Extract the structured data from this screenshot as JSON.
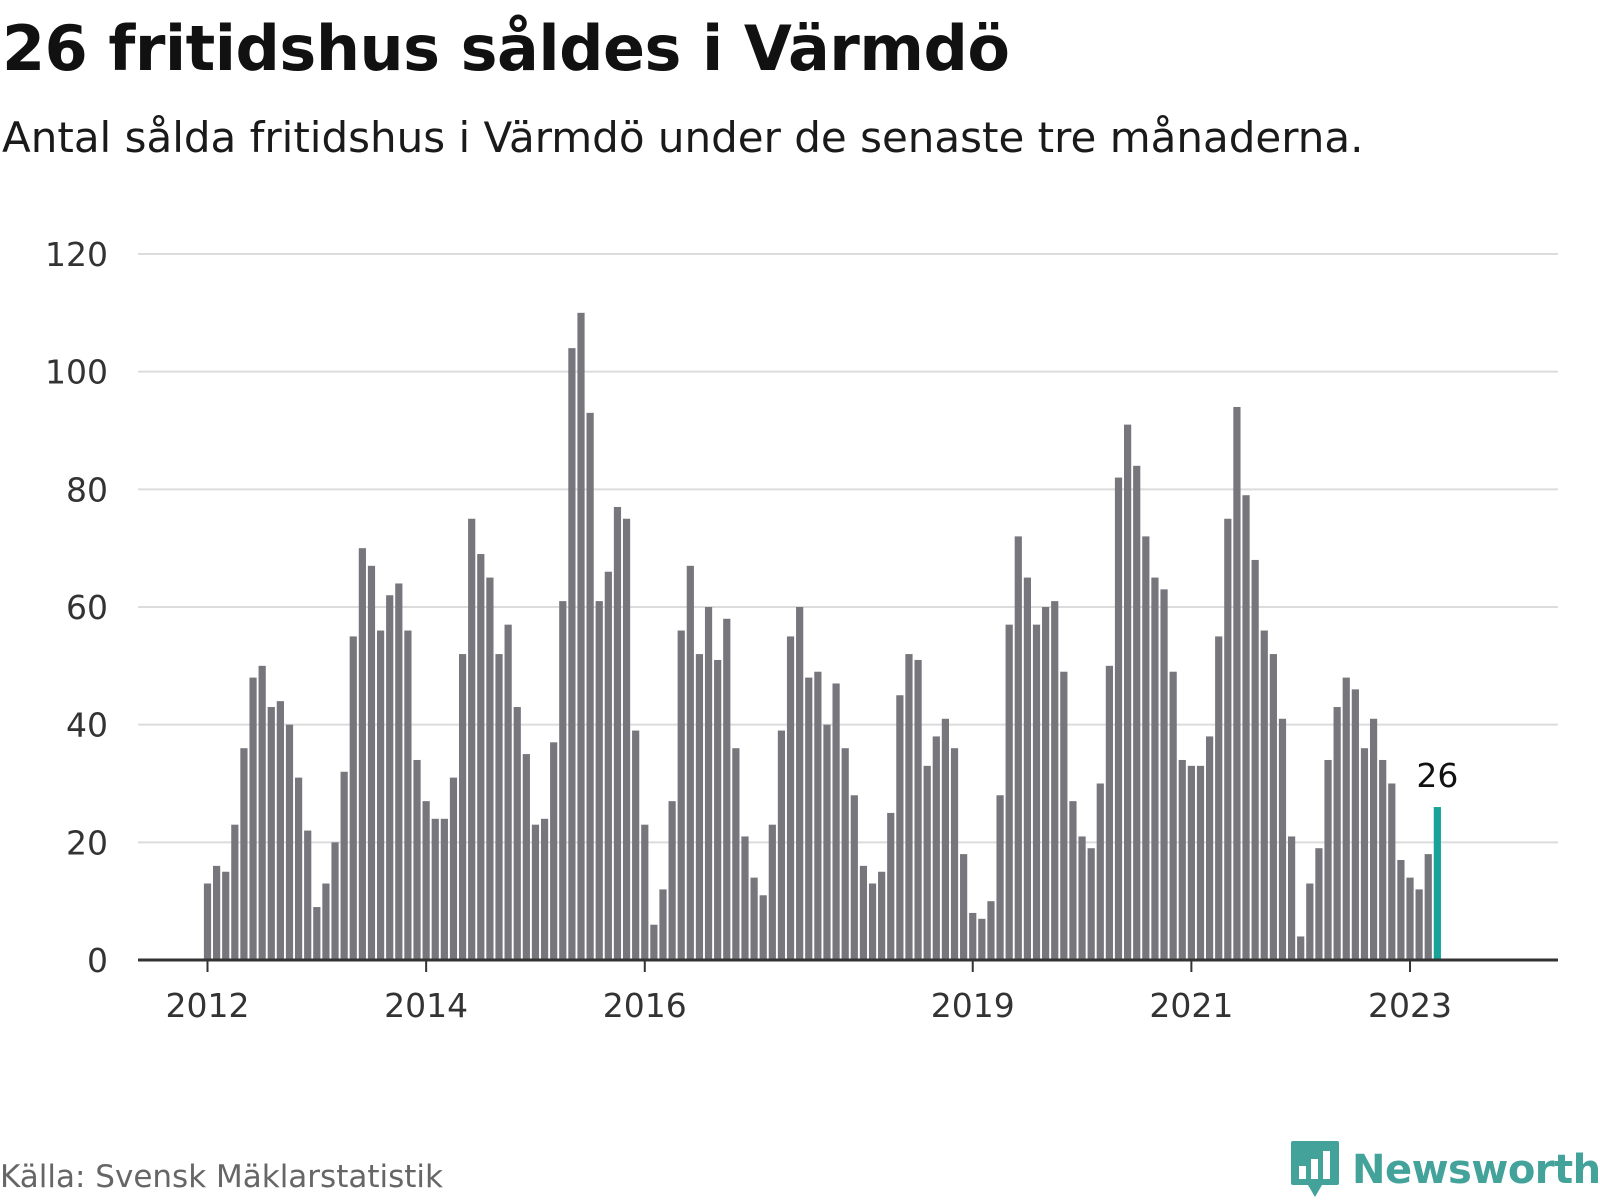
{
  "title": "26 fritidshus såldes i Värmdö",
  "subtitle": "Antal sålda fritidshus i Värmdö under de senaste tre månaderna.",
  "source": "Källa: Svensk Mäklarstatistik",
  "brand": {
    "name": "Newsworthy",
    "color": "#43a39b",
    "icon": "newsworthy-logo-icon"
  },
  "colors": {
    "bar": "#76767c",
    "highlight": "#17a399",
    "grid": "#dcdcdc",
    "axis": "#333333"
  },
  "chart_data": {
    "type": "bar",
    "title": "26 fritidshus såldes i Värmdö",
    "xlabel": "",
    "ylabel": "",
    "ylim": [
      0,
      120
    ],
    "yticks": [
      0,
      20,
      40,
      60,
      80,
      100,
      120
    ],
    "grid": true,
    "legend": "none",
    "start_month": "2012-01",
    "end_month": "2023-03",
    "xtick_labels": [
      {
        "label": "2012",
        "index": 0
      },
      {
        "label": "2014",
        "index": 24
      },
      {
        "label": "2016",
        "index": 48
      },
      {
        "label": "2019",
        "index": 84
      },
      {
        "label": "2021",
        "index": 108
      },
      {
        "label": "2023",
        "index": 132
      }
    ],
    "values": [
      13,
      16,
      15,
      23,
      36,
      48,
      50,
      43,
      44,
      40,
      31,
      22,
      9,
      13,
      20,
      32,
      55,
      70,
      67,
      56,
      62,
      64,
      56,
      34,
      27,
      24,
      24,
      31,
      52,
      75,
      69,
      65,
      52,
      57,
      43,
      35,
      23,
      24,
      37,
      61,
      104,
      110,
      93,
      61,
      66,
      77,
      75,
      39,
      23,
      6,
      12,
      27,
      56,
      67,
      52,
      60,
      51,
      58,
      36,
      21,
      14,
      11,
      23,
      39,
      55,
      60,
      48,
      49,
      40,
      47,
      36,
      28,
      16,
      13,
      15,
      25,
      45,
      52,
      51,
      33,
      38,
      41,
      36,
      18,
      8,
      7,
      10,
      28,
      57,
      72,
      65,
      57,
      60,
      61,
      49,
      27,
      21,
      19,
      30,
      50,
      82,
      91,
      84,
      72,
      65,
      63,
      49,
      34,
      33,
      33,
      38,
      55,
      75,
      94,
      79,
      68,
      56,
      52,
      41,
      21,
      4,
      13,
      19,
      34,
      43,
      48,
      46,
      36,
      41,
      34,
      30,
      17,
      14,
      12,
      18,
      26
    ],
    "highlight_label": "26"
  }
}
